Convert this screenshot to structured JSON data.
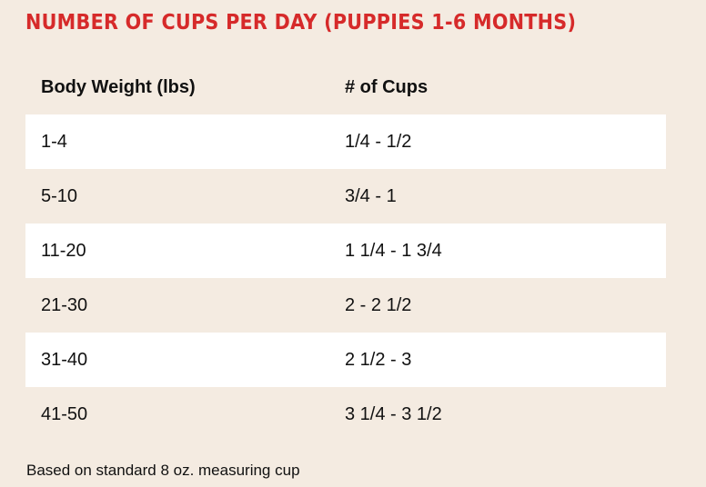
{
  "title": "NUMBER OF CUPS PER DAY (PUPPIES 1-6 MONTHS)",
  "table": {
    "headers": {
      "weight": "Body Weight (lbs)",
      "cups": "# of Cups"
    },
    "rows": [
      {
        "weight": "1-4",
        "cups": "1/4 - 1/2"
      },
      {
        "weight": "5-10",
        "cups": "3/4 - 1"
      },
      {
        "weight": "11-20",
        "cups": "1 1/4 - 1 3/4"
      },
      {
        "weight": "21-30",
        "cups": "2 - 2 1/2"
      },
      {
        "weight": "31-40",
        "cups": "2 1/2 - 3"
      },
      {
        "weight": "41-50",
        "cups": "3 1/4 - 3 1/2"
      }
    ]
  },
  "footnote": "Based on standard 8 oz. measuring cup",
  "colors": {
    "background": "#f4ebe1",
    "title": "#d62a2a",
    "shaded_row": "#ffffff"
  }
}
